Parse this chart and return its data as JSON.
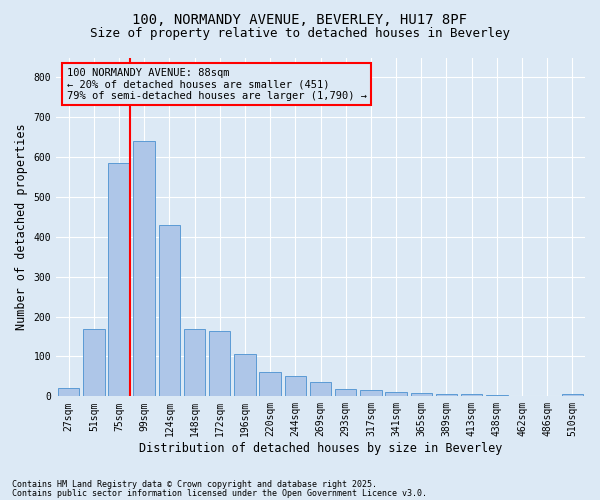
{
  "title1": "100, NORMANDY AVENUE, BEVERLEY, HU17 8PF",
  "title2": "Size of property relative to detached houses in Beverley",
  "xlabel": "Distribution of detached houses by size in Beverley",
  "ylabel": "Number of detached properties",
  "categories": [
    "27sqm",
    "51sqm",
    "75sqm",
    "99sqm",
    "124sqm",
    "148sqm",
    "172sqm",
    "196sqm",
    "220sqm",
    "244sqm",
    "269sqm",
    "293sqm",
    "317sqm",
    "341sqm",
    "365sqm",
    "389sqm",
    "413sqm",
    "438sqm",
    "462sqm",
    "486sqm",
    "510sqm"
  ],
  "values": [
    20,
    170,
    585,
    640,
    430,
    170,
    165,
    105,
    60,
    50,
    35,
    18,
    15,
    12,
    8,
    6,
    5,
    3,
    2,
    1,
    5
  ],
  "bar_color": "#aec6e8",
  "bar_edge_color": "#5b9bd5",
  "vline_color": "red",
  "annotation_text_line1": "100 NORMANDY AVENUE: 88sqm",
  "annotation_text_line2": "← 20% of detached houses are smaller (451)",
  "annotation_text_line3": "79% of semi-detached houses are larger (1,790) →",
  "ylim": [
    0,
    850
  ],
  "yticks": [
    0,
    100,
    200,
    300,
    400,
    500,
    600,
    700,
    800
  ],
  "background_color": "#dce9f5",
  "grid_color": "#ffffff",
  "footer_line1": "Contains HM Land Registry data © Crown copyright and database right 2025.",
  "footer_line2": "Contains public sector information licensed under the Open Government Licence v3.0.",
  "title_fontsize": 10,
  "subtitle_fontsize": 9,
  "tick_fontsize": 7,
  "label_fontsize": 8.5,
  "footer_fontsize": 6,
  "annotation_fontsize": 7.5
}
